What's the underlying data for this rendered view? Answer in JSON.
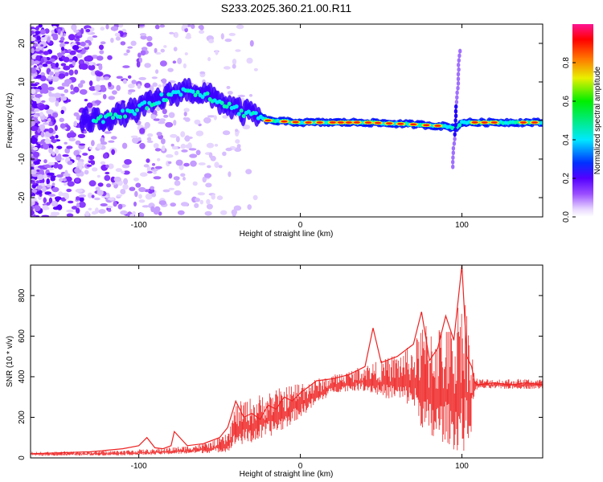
{
  "figure": {
    "title": "S233.2025.360.21.00.R11"
  },
  "chart_data": [
    {
      "type": "heatmap",
      "name": "spectrogram",
      "xlabel": "Height of straight line (km)",
      "ylabel": "Frequency (Hz)",
      "xlim": [
        -167,
        150
      ],
      "ylim": [
        -25,
        25
      ],
      "xticks": [
        -100,
        0,
        100
      ],
      "yticks": [
        -20,
        -10,
        0,
        10,
        20
      ],
      "ridge": {
        "x": [
          -130,
          -115,
          -100,
          -85,
          -70,
          -60,
          -50,
          -40,
          -35,
          -30,
          -28,
          -25,
          -20,
          0,
          40,
          70,
          90,
          96,
          100,
          120,
          150
        ],
        "freq": [
          0,
          1,
          3,
          6,
          8,
          7,
          5,
          3,
          2,
          2,
          1.5,
          1,
          0,
          -0.5,
          -0.5,
          -1,
          -1.5,
          -2,
          -0.5,
          -0.5,
          -0.5
        ]
      },
      "colorbar": {
        "label": "Normalized spectral amplitude",
        "range": [
          0,
          1
        ],
        "ticks": [
          0.0,
          0.2,
          0.4,
          0.6,
          0.8
        ]
      }
    },
    {
      "type": "line",
      "name": "snr",
      "xlabel": "Height of straight line (km)",
      "ylabel": "SNR (10 * v/v)",
      "xlim": [
        -167,
        150
      ],
      "ylim": [
        0,
        950
      ],
      "xticks": [
        -100,
        0,
        100
      ],
      "yticks": [
        0,
        200,
        400,
        600,
        800
      ],
      "series": [
        {
          "name": "SNR",
          "color": "#ee2222",
          "x": [
            -167,
            -150,
            -130,
            -110,
            -100,
            -95,
            -90,
            -85,
            -80,
            -78,
            -70,
            -60,
            -50,
            -45,
            -40,
            -35,
            -30,
            -25,
            -20,
            -15,
            -10,
            -5,
            0,
            10,
            20,
            30,
            40,
            45,
            50,
            60,
            70,
            75,
            80,
            85,
            90,
            95,
            100,
            103,
            106,
            108,
            110,
            120,
            130,
            140,
            150
          ],
          "y": [
            20,
            25,
            30,
            45,
            60,
            100,
            50,
            45,
            60,
            130,
            60,
            70,
            100,
            150,
            280,
            200,
            220,
            190,
            260,
            240,
            300,
            280,
            320,
            380,
            390,
            410,
            450,
            640,
            470,
            500,
            560,
            720,
            480,
            540,
            700,
            580,
            950,
            500,
            450,
            370,
            360,
            370,
            360,
            370,
            360
          ],
          "envelope": {
            "x": [
              -167,
              -120,
              -90,
              -70,
              -55,
              -45,
              -40,
              -30,
              -20,
              -10,
              0,
              10,
              20,
              30,
              40,
              50,
              60,
              70,
              75,
              80,
              90,
              95,
              100,
              105,
              108,
              110,
              150
            ],
            "low": [
              10,
              12,
              15,
              20,
              25,
              30,
              60,
              70,
              100,
              140,
              200,
              260,
              320,
              330,
              330,
              300,
              280,
              250,
              150,
              60,
              80,
              40,
              20,
              60,
              330,
              340,
              340
            ],
            "high": [
              30,
              35,
              45,
              60,
              80,
              120,
              270,
              300,
              330,
              350,
              380,
              390,
              410,
              430,
              460,
              480,
              520,
              560,
              650,
              700,
              650,
              650,
              900,
              650,
              400,
              390,
              390
            ]
          }
        }
      ]
    }
  ]
}
